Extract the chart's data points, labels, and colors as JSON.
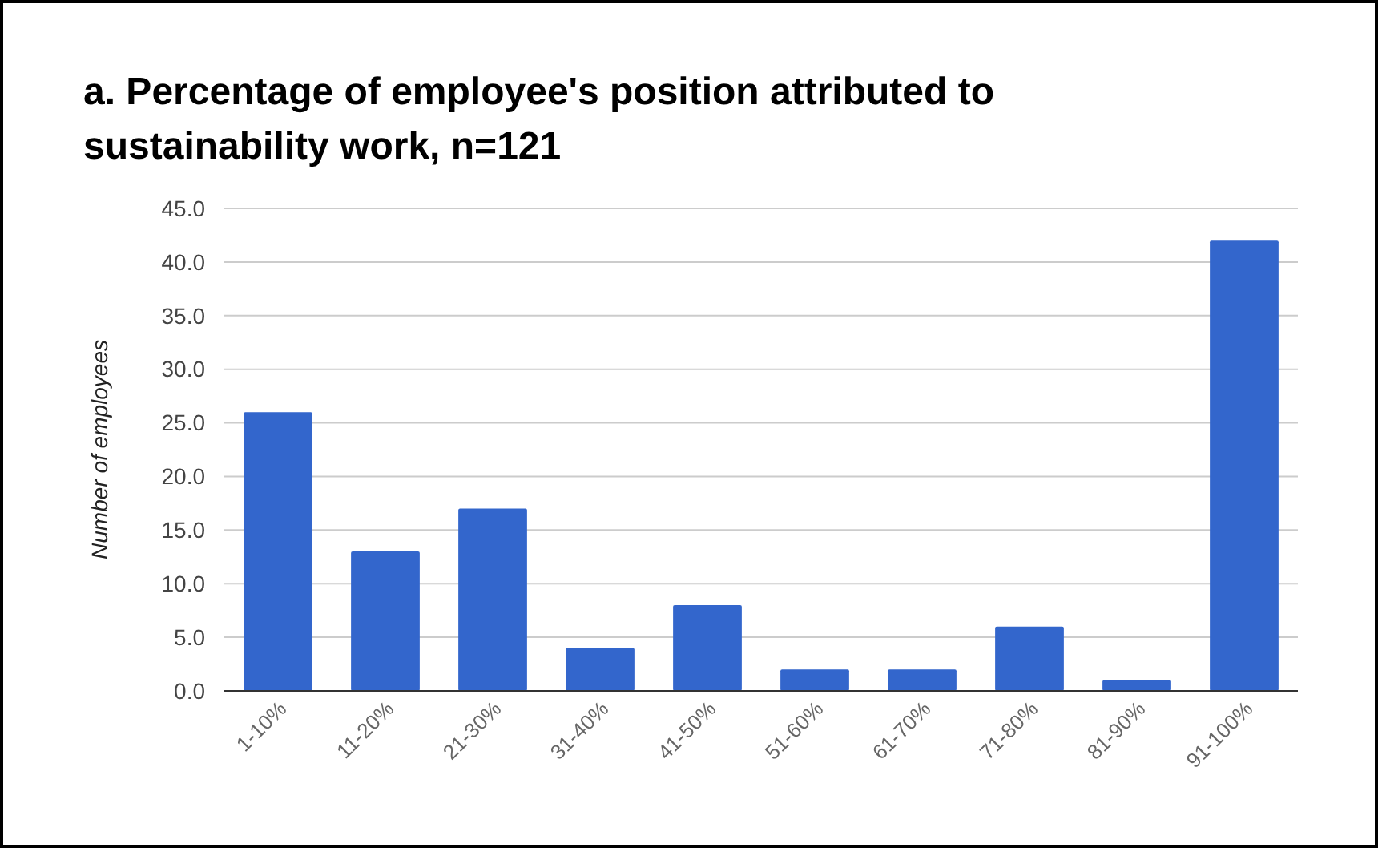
{
  "chart_data": {
    "type": "bar",
    "title": "a. Percentage of employee's position attributed to sustainability work, n=121",
    "ylabel": "Number of employees",
    "categories": [
      "1-10%",
      "11-20%",
      "21-30%",
      "31-40%",
      "41-50%",
      "51-60%",
      "61-70%",
      "71-80%",
      "81-90%",
      "91-100%"
    ],
    "values": [
      26,
      13,
      17,
      4,
      8,
      2,
      2,
      6,
      1,
      42
    ],
    "color": "#3366cc",
    "ylim": [
      0,
      45
    ],
    "yticks": [
      {
        "value": 0,
        "label": "0.0"
      },
      {
        "value": 5,
        "label": "5.0"
      },
      {
        "value": 10,
        "label": "10.0"
      },
      {
        "value": 15,
        "label": "15.0"
      },
      {
        "value": 20,
        "label": "20.0"
      },
      {
        "value": 25,
        "label": "25.0"
      },
      {
        "value": 30,
        "label": "30.0"
      },
      {
        "value": 35,
        "label": "35.0"
      },
      {
        "value": 40,
        "label": "40.0"
      },
      {
        "value": 45,
        "label": "45.0"
      }
    ],
    "grid": "y"
  }
}
